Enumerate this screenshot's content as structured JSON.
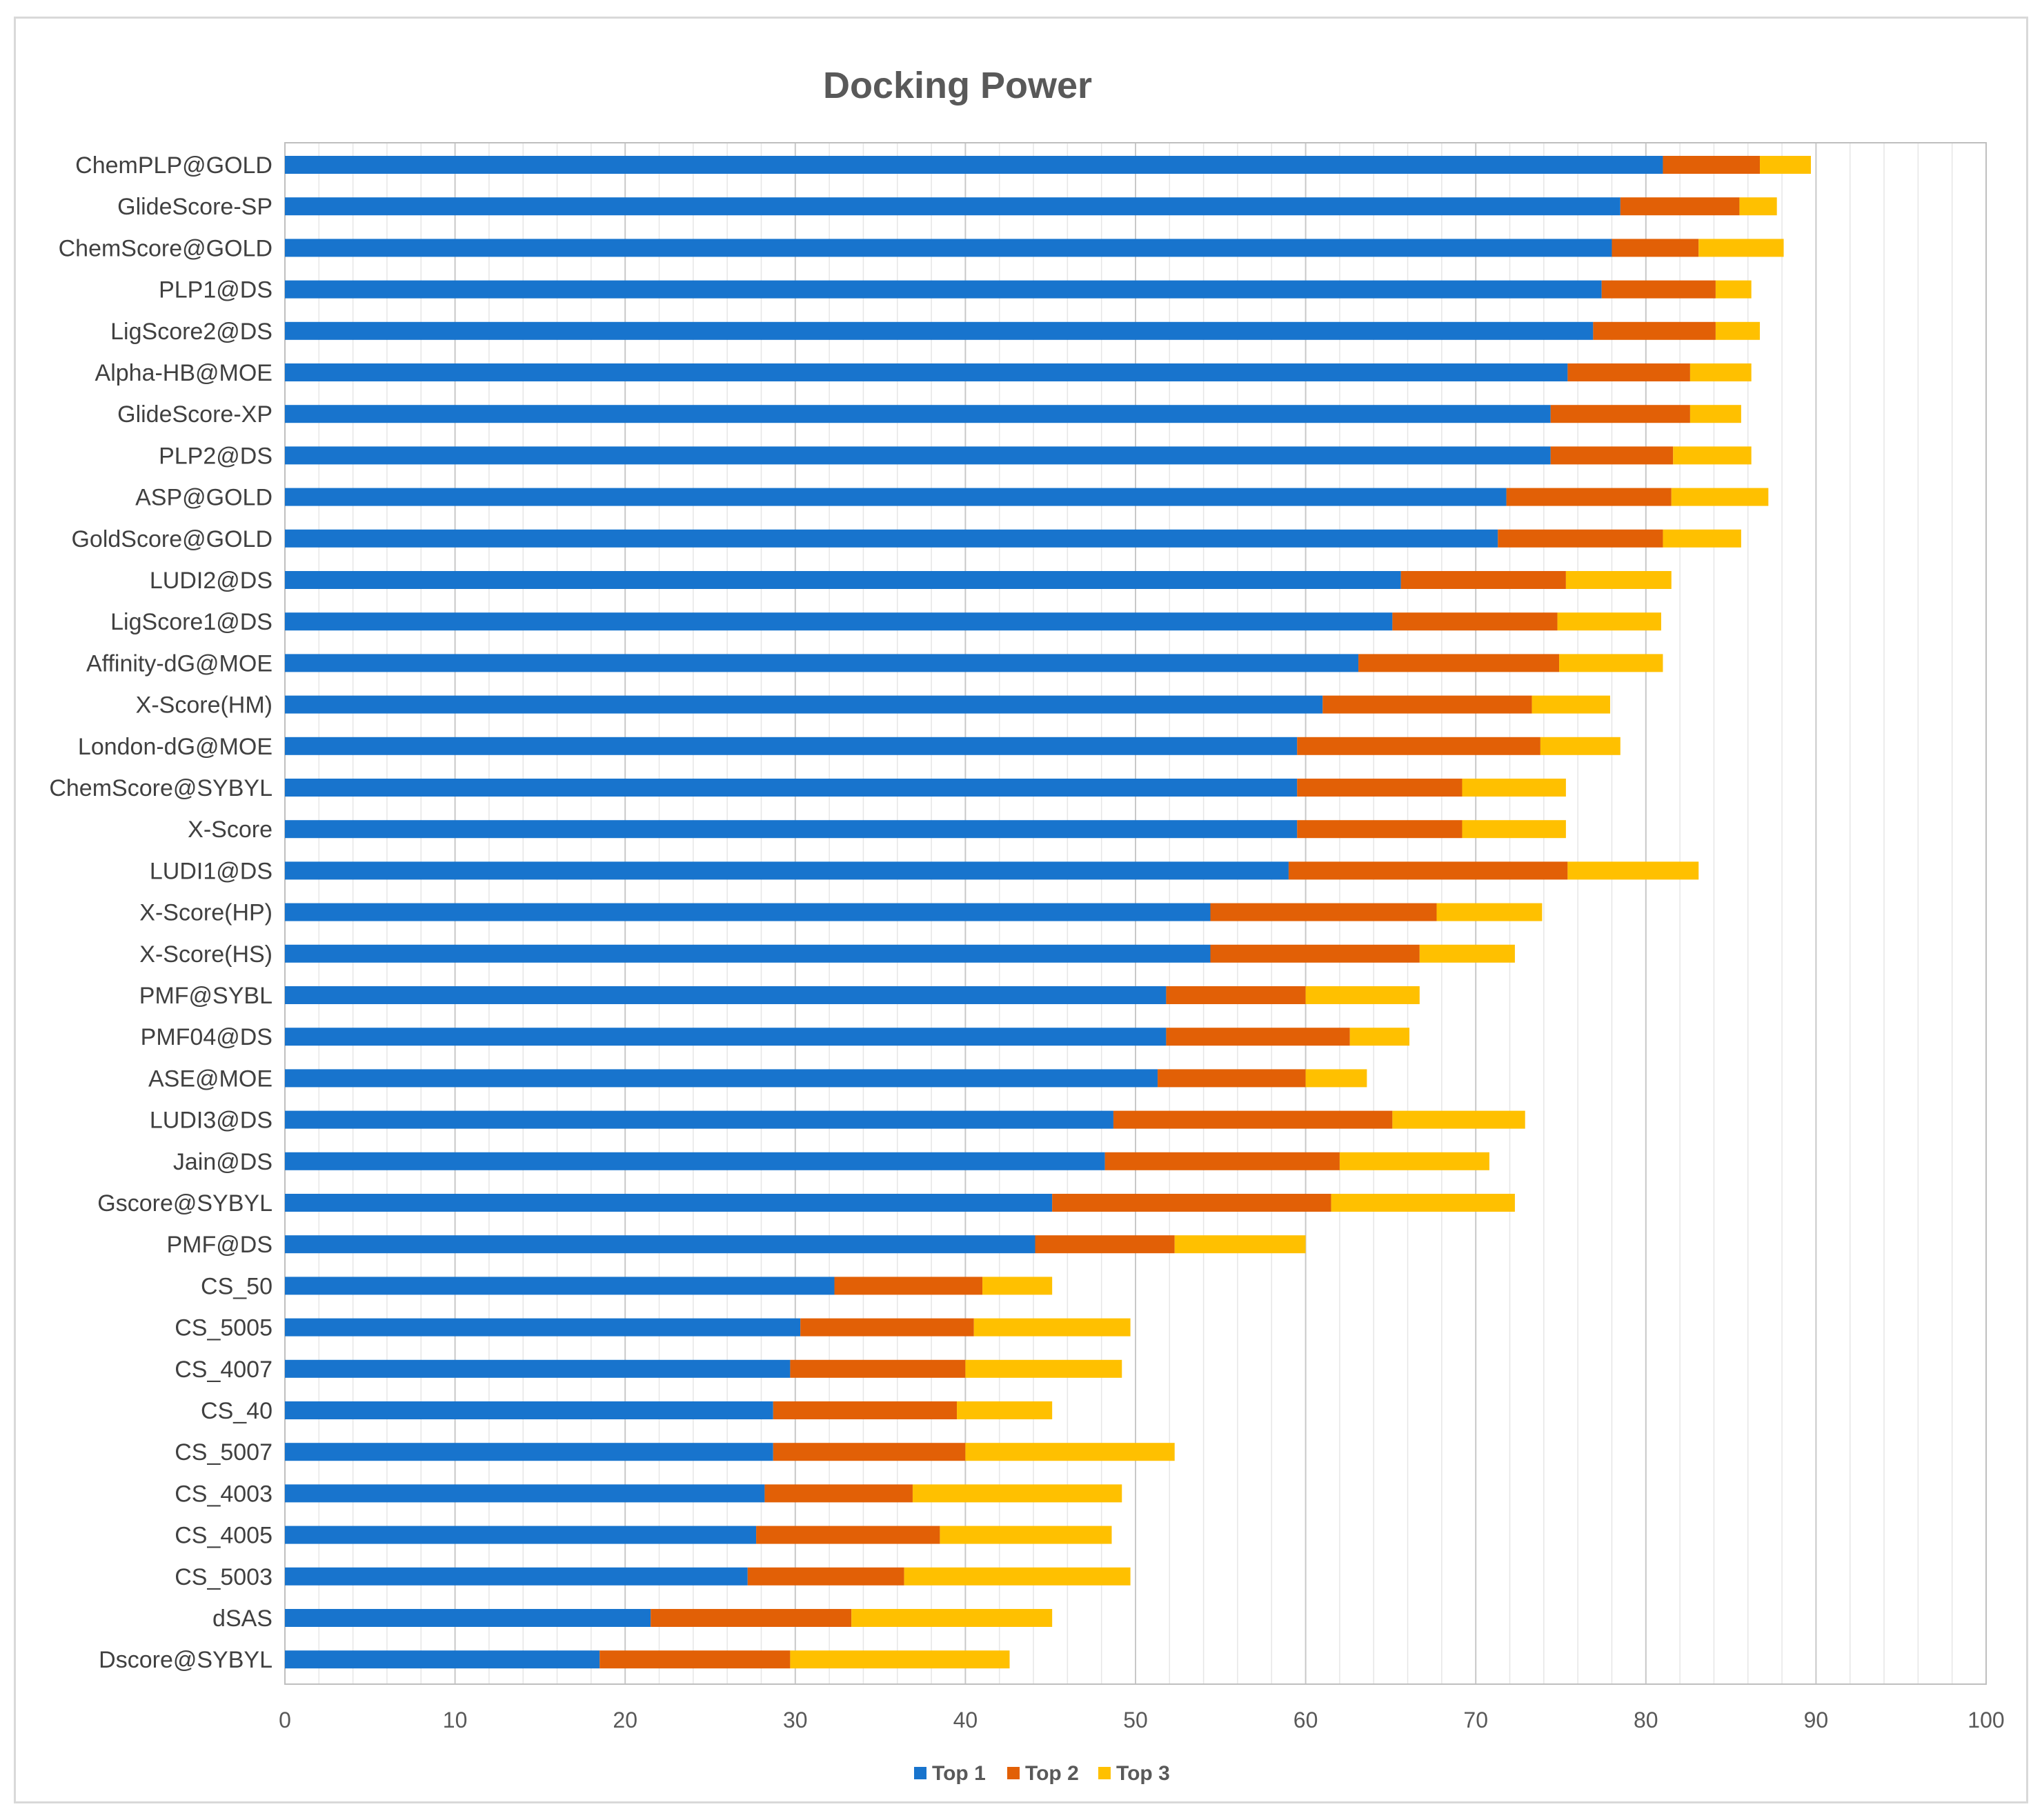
{
  "chart_data": {
    "type": "bar",
    "orientation": "horizontal",
    "stacked": true,
    "title": "Docking Power",
    "xlabel": "",
    "ylabel": "",
    "xlim": [
      0,
      100
    ],
    "x_ticks": [
      0,
      10,
      20,
      30,
      40,
      50,
      60,
      70,
      80,
      90,
      100
    ],
    "grid": "vertical major and minor gridlines",
    "legend_position": "bottom",
    "categories": [
      "ChemPLP@GOLD",
      "GlideScore-SP",
      "ChemScore@GOLD",
      "PLP1@DS",
      "LigScore2@DS",
      "Alpha-HB@MOE",
      "GlideScore-XP",
      "PLP2@DS",
      "ASP@GOLD",
      "GoldScore@GOLD",
      "LUDI2@DS",
      "LigScore1@DS",
      "Affinity-dG@MOE",
      "X-Score(HM)",
      "London-dG@MOE",
      "ChemScore@SYBYL",
      "X-Score",
      "LUDI1@DS",
      "X-Score(HP)",
      "X-Score(HS)",
      "PMF@SYBL",
      "PMF04@DS",
      "ASE@MOE",
      "LUDI3@DS",
      "Jain@DS",
      "Gscore@SYBYL",
      "PMF@DS",
      "CS_50",
      "CS_5005",
      "CS_4007",
      "CS_40",
      "CS_5007",
      "CS_4003",
      "CS_4005",
      "CS_5003",
      "dSAS",
      "Dscore@SYBYL"
    ],
    "series": [
      {
        "name": "Top 1",
        "color": "#1874CD",
        "values": [
          81.0,
          78.5,
          78.0,
          77.4,
          76.9,
          75.4,
          74.4,
          74.4,
          71.8,
          71.3,
          65.6,
          65.1,
          63.1,
          61.0,
          59.5,
          59.5,
          59.5,
          59.0,
          54.4,
          54.4,
          51.8,
          51.8,
          51.3,
          48.7,
          48.2,
          45.1,
          44.1,
          32.3,
          30.3,
          29.7,
          28.7,
          28.7,
          28.2,
          27.7,
          27.2,
          21.5,
          18.5
        ]
      },
      {
        "name": "Top 2",
        "color": "#E26006",
        "values": [
          5.7,
          7.0,
          5.1,
          6.7,
          7.2,
          7.2,
          8.2,
          7.2,
          9.7,
          9.7,
          9.7,
          9.7,
          11.8,
          12.3,
          14.3,
          9.7,
          9.7,
          16.4,
          13.3,
          12.3,
          8.2,
          10.8,
          8.7,
          16.4,
          13.8,
          16.4,
          8.2,
          8.7,
          10.2,
          10.3,
          10.8,
          11.3,
          8.7,
          10.8,
          9.2,
          11.8,
          11.2
        ]
      },
      {
        "name": "Top 3",
        "color": "#FFC000",
        "values": [
          3.0,
          2.2,
          5.0,
          2.1,
          2.6,
          3.6,
          3.0,
          4.6,
          5.7,
          4.6,
          6.2,
          6.1,
          6.1,
          4.6,
          4.7,
          6.1,
          6.1,
          7.7,
          6.2,
          5.6,
          6.7,
          3.5,
          3.6,
          7.8,
          8.8,
          10.8,
          7.7,
          4.1,
          9.2,
          9.2,
          5.6,
          12.3,
          12.3,
          10.1,
          13.3,
          11.8,
          12.9
        ]
      }
    ]
  }
}
